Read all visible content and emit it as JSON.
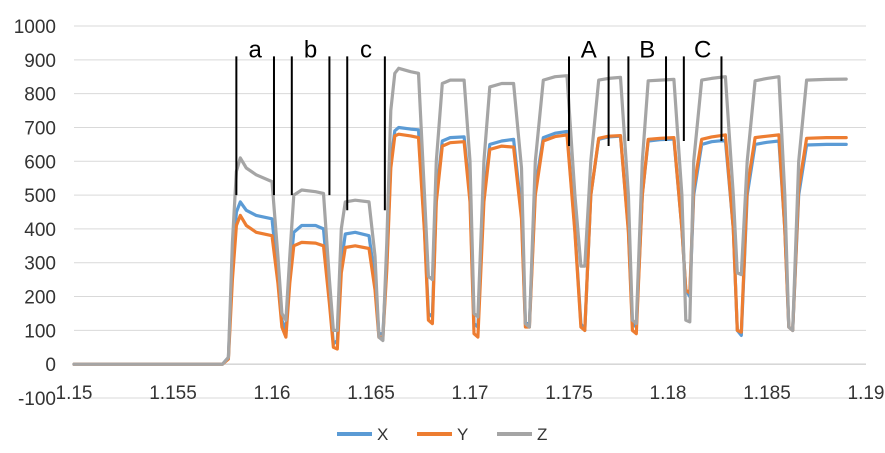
{
  "chart_data": {
    "type": "line",
    "title": "",
    "xlabel": "",
    "ylabel": "",
    "xlim": [
      1.15,
      1.19
    ],
    "ylim": [
      -100,
      1000
    ],
    "grid": "horizontal",
    "legend_position": "bottom",
    "x_ticks": [
      {
        "value": 1.15,
        "label": "1.15"
      },
      {
        "value": 1.155,
        "label": "1.155"
      },
      {
        "value": 1.16,
        "label": "1.16"
      },
      {
        "value": 1.165,
        "label": "1.165"
      },
      {
        "value": 1.17,
        "label": "1.17"
      },
      {
        "value": 1.175,
        "label": "1.175"
      },
      {
        "value": 1.18,
        "label": "1.18"
      },
      {
        "value": 1.185,
        "label": "1.185"
      },
      {
        "value": 1.19,
        "label": "1.19"
      }
    ],
    "y_ticks": [
      {
        "value": 1000,
        "label": "1000"
      },
      {
        "value": 900,
        "label": "900"
      },
      {
        "value": 800,
        "label": "800"
      },
      {
        "value": 700,
        "label": "700"
      },
      {
        "value": 600,
        "label": "600"
      },
      {
        "value": 500,
        "label": "500"
      },
      {
        "value": 400,
        "label": "400"
      },
      {
        "value": 300,
        "label": "300"
      },
      {
        "value": 200,
        "label": "200"
      },
      {
        "value": 100,
        "label": "100"
      },
      {
        "value": 0,
        "label": "0"
      },
      {
        "value": -100,
        "label": "-100"
      }
    ],
    "series": [
      {
        "name": "X",
        "color": "#5B9BD5",
        "points": [
          [
            1.15,
            0
          ],
          [
            1.157,
            0
          ],
          [
            1.1575,
            0
          ],
          [
            1.1578,
            20
          ],
          [
            1.158,
            300
          ],
          [
            1.1582,
            450
          ],
          [
            1.1584,
            480
          ],
          [
            1.1587,
            455
          ],
          [
            1.1592,
            440
          ],
          [
            1.16,
            430
          ],
          [
            1.1603,
            260
          ],
          [
            1.1605,
            130
          ],
          [
            1.1607,
            100
          ],
          [
            1.1609,
            270
          ],
          [
            1.1611,
            390
          ],
          [
            1.1615,
            410
          ],
          [
            1.1622,
            410
          ],
          [
            1.1626,
            400
          ],
          [
            1.1629,
            200
          ],
          [
            1.1631,
            60
          ],
          [
            1.1633,
            70
          ],
          [
            1.1635,
            300
          ],
          [
            1.1637,
            385
          ],
          [
            1.1642,
            390
          ],
          [
            1.1649,
            380
          ],
          [
            1.1652,
            250
          ],
          [
            1.1654,
            90
          ],
          [
            1.1656,
            90
          ],
          [
            1.1658,
            300
          ],
          [
            1.166,
            600
          ],
          [
            1.1662,
            690
          ],
          [
            1.1664,
            700
          ],
          [
            1.167,
            695
          ],
          [
            1.1674,
            693
          ],
          [
            1.1677,
            400
          ],
          [
            1.1679,
            150
          ],
          [
            1.1681,
            140
          ],
          [
            1.1683,
            500
          ],
          [
            1.1686,
            660
          ],
          [
            1.169,
            670
          ],
          [
            1.1697,
            672
          ],
          [
            1.17,
            500
          ],
          [
            1.1702,
            120
          ],
          [
            1.1704,
            110
          ],
          [
            1.1707,
            500
          ],
          [
            1.171,
            650
          ],
          [
            1.1716,
            660
          ],
          [
            1.1722,
            665
          ],
          [
            1.1726,
            450
          ],
          [
            1.1728,
            120
          ],
          [
            1.173,
            120
          ],
          [
            1.1733,
            520
          ],
          [
            1.1737,
            670
          ],
          [
            1.1743,
            683
          ],
          [
            1.1749,
            688
          ],
          [
            1.1753,
            400
          ],
          [
            1.1756,
            120
          ],
          [
            1.1758,
            100
          ],
          [
            1.1761,
            500
          ],
          [
            1.1765,
            665
          ],
          [
            1.177,
            672
          ],
          [
            1.1776,
            674
          ],
          [
            1.178,
            400
          ],
          [
            1.1782,
            120
          ],
          [
            1.1784,
            110
          ],
          [
            1.1787,
            500
          ],
          [
            1.179,
            660
          ],
          [
            1.1796,
            664
          ],
          [
            1.1803,
            666
          ],
          [
            1.1807,
            400
          ],
          [
            1.1809,
            220
          ],
          [
            1.1811,
            200
          ],
          [
            1.1813,
            500
          ],
          [
            1.1817,
            650
          ],
          [
            1.1822,
            658
          ],
          [
            1.1829,
            662
          ],
          [
            1.1833,
            400
          ],
          [
            1.1835,
            100
          ],
          [
            1.1837,
            85
          ],
          [
            1.184,
            500
          ],
          [
            1.1844,
            650
          ],
          [
            1.185,
            656
          ],
          [
            1.1856,
            660
          ],
          [
            1.1859,
            400
          ],
          [
            1.1861,
            110
          ],
          [
            1.1863,
            100
          ],
          [
            1.1866,
            500
          ],
          [
            1.187,
            648
          ],
          [
            1.188,
            650
          ],
          [
            1.189,
            650
          ]
        ]
      },
      {
        "name": "Y",
        "color": "#ED7D31",
        "points": [
          [
            1.15,
            0
          ],
          [
            1.157,
            0
          ],
          [
            1.1575,
            0
          ],
          [
            1.1578,
            15
          ],
          [
            1.158,
            250
          ],
          [
            1.1582,
            410
          ],
          [
            1.1584,
            440
          ],
          [
            1.1587,
            410
          ],
          [
            1.1592,
            390
          ],
          [
            1.16,
            380
          ],
          [
            1.1603,
            240
          ],
          [
            1.1605,
            110
          ],
          [
            1.1607,
            80
          ],
          [
            1.1609,
            240
          ],
          [
            1.1611,
            350
          ],
          [
            1.1615,
            360
          ],
          [
            1.1622,
            358
          ],
          [
            1.1626,
            350
          ],
          [
            1.1629,
            180
          ],
          [
            1.1631,
            50
          ],
          [
            1.1633,
            45
          ],
          [
            1.1635,
            270
          ],
          [
            1.1637,
            345
          ],
          [
            1.1642,
            350
          ],
          [
            1.1649,
            342
          ],
          [
            1.1652,
            220
          ],
          [
            1.1654,
            80
          ],
          [
            1.1656,
            80
          ],
          [
            1.1658,
            280
          ],
          [
            1.166,
            580
          ],
          [
            1.1662,
            675
          ],
          [
            1.1664,
            680
          ],
          [
            1.167,
            675
          ],
          [
            1.1674,
            670
          ],
          [
            1.1677,
            390
          ],
          [
            1.1679,
            130
          ],
          [
            1.1681,
            120
          ],
          [
            1.1683,
            480
          ],
          [
            1.1686,
            645
          ],
          [
            1.169,
            655
          ],
          [
            1.1697,
            658
          ],
          [
            1.17,
            480
          ],
          [
            1.1702,
            90
          ],
          [
            1.1704,
            80
          ],
          [
            1.1707,
            480
          ],
          [
            1.171,
            635
          ],
          [
            1.1716,
            645
          ],
          [
            1.1722,
            642
          ],
          [
            1.1726,
            430
          ],
          [
            1.1728,
            110
          ],
          [
            1.173,
            110
          ],
          [
            1.1733,
            500
          ],
          [
            1.1737,
            660
          ],
          [
            1.1743,
            673
          ],
          [
            1.1749,
            678
          ],
          [
            1.1753,
            390
          ],
          [
            1.1756,
            110
          ],
          [
            1.1758,
            100
          ],
          [
            1.1761,
            500
          ],
          [
            1.1765,
            668
          ],
          [
            1.177,
            674
          ],
          [
            1.1776,
            676
          ],
          [
            1.178,
            390
          ],
          [
            1.1782,
            100
          ],
          [
            1.1784,
            90
          ],
          [
            1.1787,
            500
          ],
          [
            1.179,
            665
          ],
          [
            1.1796,
            668
          ],
          [
            1.1803,
            670
          ],
          [
            1.1807,
            400
          ],
          [
            1.1809,
            220
          ],
          [
            1.1811,
            210
          ],
          [
            1.1813,
            520
          ],
          [
            1.1817,
            665
          ],
          [
            1.1822,
            672
          ],
          [
            1.1829,
            678
          ],
          [
            1.1833,
            400
          ],
          [
            1.1835,
            100
          ],
          [
            1.1837,
            95
          ],
          [
            1.184,
            520
          ],
          [
            1.1844,
            670
          ],
          [
            1.185,
            674
          ],
          [
            1.1856,
            678
          ],
          [
            1.1859,
            400
          ],
          [
            1.1861,
            110
          ],
          [
            1.1863,
            100
          ],
          [
            1.1866,
            520
          ],
          [
            1.187,
            668
          ],
          [
            1.188,
            670
          ],
          [
            1.189,
            670
          ]
        ]
      },
      {
        "name": "Z",
        "color": "#A5A5A5",
        "points": [
          [
            1.15,
            0
          ],
          [
            1.157,
            0
          ],
          [
            1.1575,
            0
          ],
          [
            1.1578,
            20
          ],
          [
            1.158,
            360
          ],
          [
            1.1582,
            570
          ],
          [
            1.1584,
            610
          ],
          [
            1.1587,
            580
          ],
          [
            1.1592,
            560
          ],
          [
            1.16,
            540
          ],
          [
            1.1603,
            320
          ],
          [
            1.1605,
            150
          ],
          [
            1.1607,
            130
          ],
          [
            1.1609,
            320
          ],
          [
            1.1611,
            500
          ],
          [
            1.1615,
            515
          ],
          [
            1.1622,
            510
          ],
          [
            1.1626,
            505
          ],
          [
            1.1629,
            250
          ],
          [
            1.1631,
            100
          ],
          [
            1.1633,
            100
          ],
          [
            1.1635,
            400
          ],
          [
            1.1637,
            480
          ],
          [
            1.1642,
            485
          ],
          [
            1.1649,
            480
          ],
          [
            1.1652,
            320
          ],
          [
            1.1654,
            80
          ],
          [
            1.1656,
            70
          ],
          [
            1.1658,
            360
          ],
          [
            1.166,
            750
          ],
          [
            1.1662,
            860
          ],
          [
            1.1664,
            875
          ],
          [
            1.167,
            865
          ],
          [
            1.1674,
            860
          ],
          [
            1.1677,
            500
          ],
          [
            1.1679,
            260
          ],
          [
            1.1681,
            250
          ],
          [
            1.1683,
            600
          ],
          [
            1.1686,
            830
          ],
          [
            1.169,
            840
          ],
          [
            1.1697,
            840
          ],
          [
            1.17,
            600
          ],
          [
            1.1702,
            150
          ],
          [
            1.1704,
            140
          ],
          [
            1.1707,
            600
          ],
          [
            1.171,
            820
          ],
          [
            1.1716,
            830
          ],
          [
            1.1722,
            830
          ],
          [
            1.1726,
            580
          ],
          [
            1.1728,
            120
          ],
          [
            1.173,
            110
          ],
          [
            1.1733,
            600
          ],
          [
            1.1737,
            840
          ],
          [
            1.1743,
            850
          ],
          [
            1.1749,
            853
          ],
          [
            1.1753,
            500
          ],
          [
            1.1756,
            290
          ],
          [
            1.1758,
            290
          ],
          [
            1.1761,
            600
          ],
          [
            1.1765,
            840
          ],
          [
            1.177,
            845
          ],
          [
            1.1776,
            848
          ],
          [
            1.178,
            500
          ],
          [
            1.1782,
            130
          ],
          [
            1.1784,
            120
          ],
          [
            1.1787,
            600
          ],
          [
            1.179,
            838
          ],
          [
            1.1796,
            840
          ],
          [
            1.1803,
            842
          ],
          [
            1.1807,
            500
          ],
          [
            1.1809,
            130
          ],
          [
            1.1811,
            125
          ],
          [
            1.1813,
            600
          ],
          [
            1.1817,
            840
          ],
          [
            1.1822,
            845
          ],
          [
            1.1829,
            850
          ],
          [
            1.1833,
            500
          ],
          [
            1.1835,
            270
          ],
          [
            1.1837,
            265
          ],
          [
            1.184,
            600
          ],
          [
            1.1844,
            838
          ],
          [
            1.185,
            845
          ],
          [
            1.1856,
            850
          ],
          [
            1.1859,
            500
          ],
          [
            1.1861,
            110
          ],
          [
            1.1863,
            100
          ],
          [
            1.1866,
            600
          ],
          [
            1.187,
            840
          ],
          [
            1.188,
            842
          ],
          [
            1.189,
            843
          ]
        ]
      }
    ],
    "annotations": [
      {
        "label": "a",
        "x_left": 1.1582,
        "x_right": 1.1601,
        "line_top": 910,
        "line_bottom": 500
      },
      {
        "label": "b",
        "x_left": 1.161,
        "x_right": 1.1629,
        "line_top": 910,
        "line_bottom": 500
      },
      {
        "label": "c",
        "x_left": 1.1638,
        "x_right": 1.1657,
        "line_top": 910,
        "line_bottom": 455
      },
      {
        "label": "A",
        "x_left": 1.175,
        "x_right": 1.177,
        "line_top": 910,
        "line_bottom": 645
      },
      {
        "label": "B",
        "x_left": 1.178,
        "x_right": 1.1799,
        "line_top": 910,
        "line_bottom": 660
      },
      {
        "label": "C",
        "x_left": 1.1808,
        "x_right": 1.1827,
        "line_top": 910,
        "line_bottom": 660
      }
    ]
  }
}
